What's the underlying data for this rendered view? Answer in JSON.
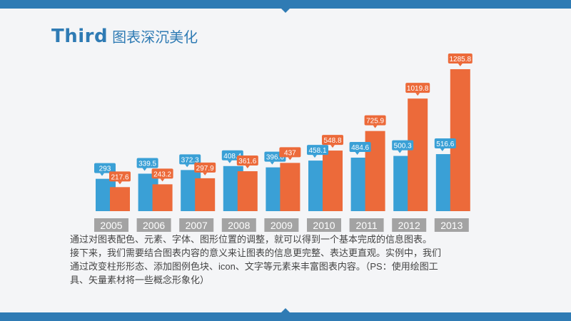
{
  "slide": {
    "title_en": "Third",
    "title_cn": "图表深沉美化",
    "description": [
      "通过对图表配色、元素、字体、图形位置的调整，就可以得到一个基本完成的信息图表。",
      "接下来，我们需要结合图表内容的意义来让图表的信息更完整、表达更直观。实例中，我们",
      "通过改变柱形形态、添加图例色块、icon、文字等元素来丰富图表内容。（PS：使用绘图工",
      "具、矢量素材将一些概念形象化）"
    ]
  },
  "colors": {
    "accent": "#2f7bb4",
    "series_a": "#3aa0d6",
    "series_b": "#ec6a3a",
    "axis_label_bg": "#a3a3a3"
  },
  "chart_data": {
    "type": "bar",
    "categories": [
      "2005",
      "2006",
      "2007",
      "2008",
      "2009",
      "2010",
      "2011",
      "2012",
      "2013"
    ],
    "series": [
      {
        "values": [
          293,
          339.5,
          372.3,
          408.4,
          396.6,
          458.1,
          484.6,
          500.3,
          516.6
        ]
      },
      {
        "values": [
          217.6,
          243.2,
          297.9,
          361.6,
          437,
          548.8,
          725.9,
          1019.8,
          1285.8
        ]
      }
    ],
    "data_labels": [
      [
        "293",
        "339.5",
        "372.3",
        "408.4",
        "396.6",
        "458.1",
        "484.6",
        "500.3",
        "516.6"
      ],
      [
        "217.6",
        "243.2",
        "297.9",
        "361.6",
        "437",
        "548.8",
        "725.9",
        "1019.8",
        "1285.8"
      ]
    ],
    "ylim": [
      0,
      1285.8
    ],
    "grid": false,
    "legend": "none"
  }
}
